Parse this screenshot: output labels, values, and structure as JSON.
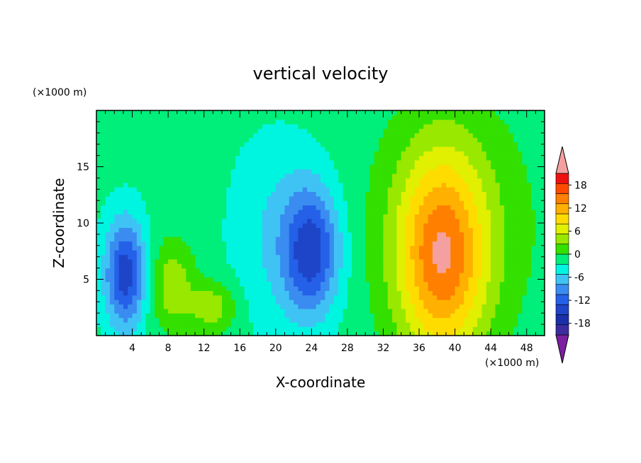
{
  "chart_data": {
    "type": "heatmap",
    "title": "vertical velocity",
    "xlabel": "X-coordinate",
    "ylabel": "Z-coordinate",
    "x_unit_label": "(×1000 m)",
    "y_unit_label": "(×1000 m)",
    "xlim": [
      0,
      50
    ],
    "ylim": [
      0,
      20
    ],
    "x_ticks": [
      4,
      8,
      12,
      16,
      20,
      24,
      28,
      32,
      36,
      40,
      44,
      48
    ],
    "y_ticks": [
      5,
      10,
      15
    ],
    "colorbar": {
      "levels": [
        -21,
        -18,
        -15,
        -12,
        -9,
        -6,
        -3,
        0,
        3,
        6,
        9,
        12,
        15,
        18,
        21
      ],
      "tick_labels": [
        "18",
        "12",
        "6",
        "0",
        "-6",
        "-12",
        "-18"
      ],
      "tick_values": [
        18,
        12,
        6,
        0,
        -6,
        -12,
        -18
      ],
      "colors": [
        "#7a1fa2",
        "#3d2ca0",
        "#1b2fa8",
        "#1e45c8",
        "#2461e8",
        "#3a8cf0",
        "#3fc3f4",
        "#00f5e0",
        "#00ee7a",
        "#33e000",
        "#99e800",
        "#e0f000",
        "#ffdc00",
        "#ffb000",
        "#ff7f00",
        "#ff4a00",
        "#ee1010",
        "#f4a0a0"
      ],
      "extend": "both"
    },
    "field_features": [
      {
        "sign": "negative",
        "x": 3.2,
        "z": 5.5,
        "sx": 1.6,
        "sz": 3.4,
        "amplitude": -15
      },
      {
        "sign": "positive",
        "x": 8.5,
        "z": 4.5,
        "sx": 1.8,
        "sz": 2.8,
        "amplitude": 7
      },
      {
        "sign": "positive",
        "x": 13.0,
        "z": 2.5,
        "sx": 1.8,
        "sz": 1.6,
        "amplitude": 7
      },
      {
        "sign": "negative",
        "x": 24.0,
        "z": 7.5,
        "sx": 2.2,
        "sz": 4.0,
        "amplitude": -14
      },
      {
        "sign": "negative",
        "x": 20.0,
        "z": 9.0,
        "sx": 3.5,
        "sz": 6.0,
        "amplitude": -4
      },
      {
        "sign": "positive",
        "x": 38.5,
        "z": 7.0,
        "sx": 3.5,
        "sz": 6.5,
        "amplitude": 17
      },
      {
        "sign": "positive",
        "x": 40.0,
        "z": 10.0,
        "sx": 7.0,
        "sz": 8.0,
        "amplitude": 4
      }
    ]
  }
}
